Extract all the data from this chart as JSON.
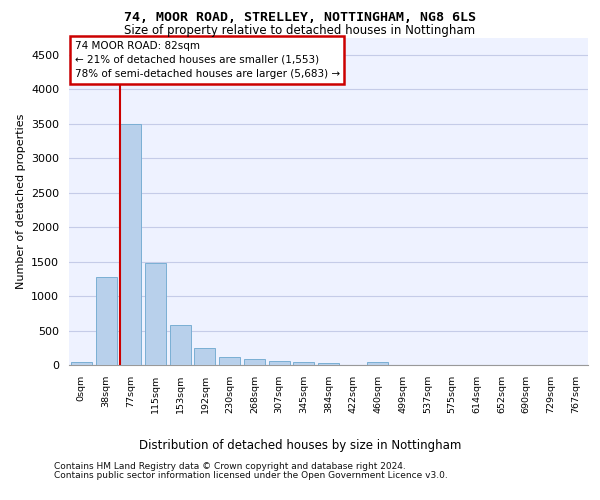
{
  "title1": "74, MOOR ROAD, STRELLEY, NOTTINGHAM, NG8 6LS",
  "title2": "Size of property relative to detached houses in Nottingham",
  "xlabel": "Distribution of detached houses by size in Nottingham",
  "ylabel": "Number of detached properties",
  "bin_labels": [
    "0sqm",
    "38sqm",
    "77sqm",
    "115sqm",
    "153sqm",
    "192sqm",
    "230sqm",
    "268sqm",
    "307sqm",
    "345sqm",
    "384sqm",
    "422sqm",
    "460sqm",
    "499sqm",
    "537sqm",
    "575sqm",
    "614sqm",
    "652sqm",
    "690sqm",
    "729sqm",
    "767sqm"
  ],
  "bar_values": [
    40,
    1270,
    3500,
    1480,
    580,
    240,
    120,
    80,
    55,
    45,
    35,
    0,
    50,
    0,
    0,
    0,
    0,
    0,
    0,
    0,
    0
  ],
  "highlight_bar_index": 2,
  "annotation_text": "74 MOOR ROAD: 82sqm\n← 21% of detached houses are smaller (1,553)\n78% of semi-detached houses are larger (5,683) →",
  "bar_color": "#b8d0eb",
  "bar_edge_color": "#7aafd4",
  "annotation_box_facecolor": "#ffffff",
  "annotation_border_color": "#cc0000",
  "vline_color": "#cc0000",
  "ylim": [
    0,
    4750
  ],
  "yticks": [
    0,
    500,
    1000,
    1500,
    2000,
    2500,
    3000,
    3500,
    4000,
    4500
  ],
  "bg_color": "#eef2ff",
  "grid_color": "#c5cce8",
  "footer1": "Contains HM Land Registry data © Crown copyright and database right 2024.",
  "footer2": "Contains public sector information licensed under the Open Government Licence v3.0."
}
